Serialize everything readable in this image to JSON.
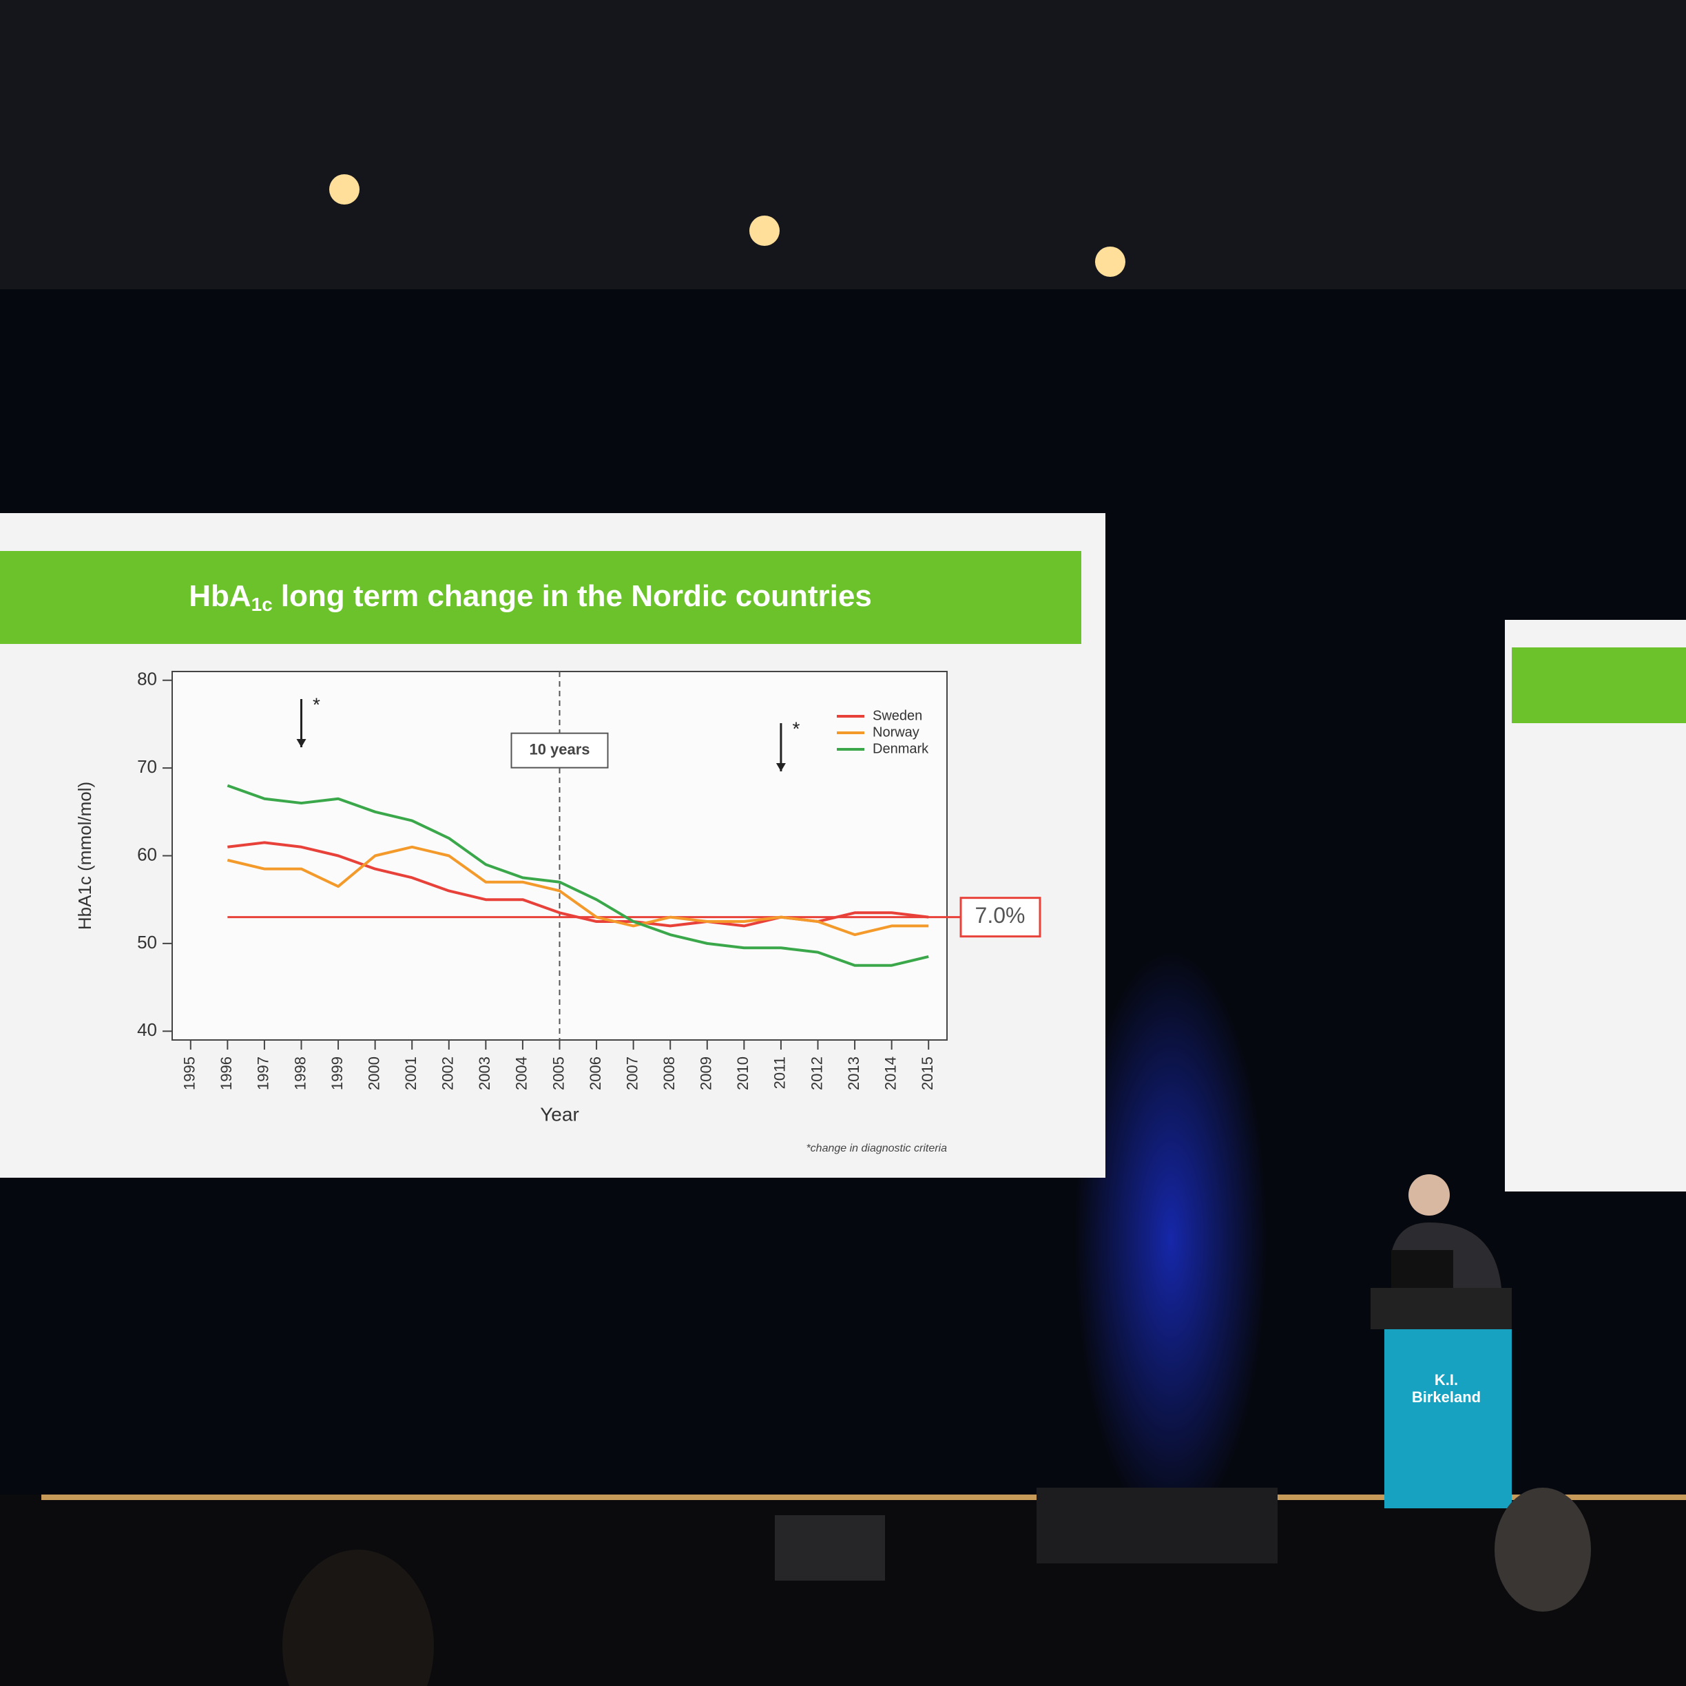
{
  "chart_data": {
    "type": "line",
    "title": "HbA",
    "title_subscript": "1c",
    "title_rest": "long term change in the Nordic countries",
    "x_label": "Year",
    "y_label": "HbA1c (mmol/mol)",
    "x": [
      1996,
      1997,
      1998,
      1999,
      2000,
      2001,
      2002,
      2003,
      2004,
      2005,
      2006,
      2007,
      2008,
      2009,
      2010,
      2011,
      2012,
      2013,
      2014,
      2015
    ],
    "series": [
      {
        "name": "Sweden",
        "color": "#e8413a",
        "values": [
          61,
          61.5,
          61,
          60,
          58.5,
          57.5,
          56,
          55,
          55,
          53.5,
          52.5,
          52.5,
          52,
          52.5,
          52,
          53,
          52.5,
          53.5,
          53.5,
          53
        ]
      },
      {
        "name": "Norway",
        "color": "#f39a2b",
        "values": [
          59.5,
          58.5,
          58.5,
          56.5,
          60,
          61,
          60,
          57,
          57,
          56,
          53,
          52,
          53,
          52.5,
          52.5,
          53,
          52.5,
          51,
          52,
          52
        ]
      },
      {
        "name": "Denmark",
        "color": "#3aa84a",
        "values": [
          68,
          66.5,
          66,
          66.5,
          65,
          64,
          62,
          59,
          57.5,
          57,
          55,
          52.5,
          51,
          50,
          49.5,
          49.5,
          49,
          47.5,
          47.5,
          48.5
        ]
      }
    ],
    "xlim": [
      1994.5,
      2015.5
    ],
    "xticks": [
      1995,
      1996,
      1997,
      1998,
      1999,
      2000,
      2001,
      2002,
      2003,
      2004,
      2005,
      2006,
      2007,
      2008,
      2009,
      2010,
      2011,
      2012,
      2013,
      2014,
      2015
    ],
    "ylim": [
      39,
      81
    ],
    "yticks": [
      40,
      50,
      60,
      70,
      80
    ],
    "reference_line": {
      "value": 53,
      "label": "7.0%",
      "color": "#e8413a"
    },
    "vline": {
      "value": 2005,
      "label": "10 years"
    },
    "arrows": [
      {
        "x": 1998,
        "label": "*"
      },
      {
        "x": 2011,
        "label": "*"
      }
    ],
    "footnote": "*change in diagnostic criteria",
    "legend": "top-right"
  },
  "podium": {
    "lines": [
      "K.I.",
      "Birkeland"
    ]
  }
}
